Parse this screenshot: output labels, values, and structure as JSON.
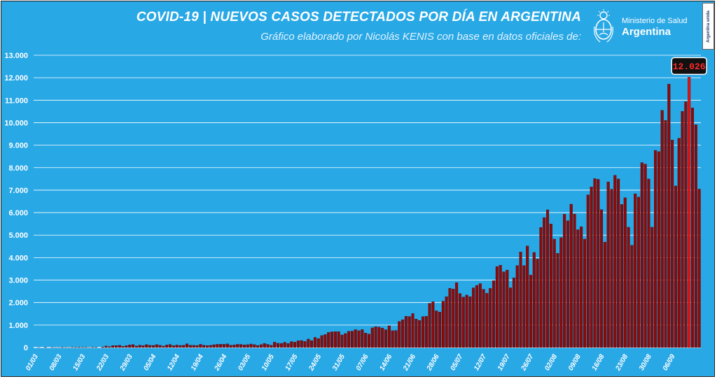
{
  "header": {
    "title": "COVID-19  |  NUEVOS CASOS DETECTADOS POR DÍA EN ARGENTINA",
    "subtitle": "Gráfico elaborado por Nicolás KENIS con base en datos oficiales de:"
  },
  "logo": {
    "line1": "Ministerio de Salud",
    "line2": "Argentina",
    "brand": "Argentina unida"
  },
  "colors": {
    "background": "#29a8e6",
    "bar": "#8b0a0a",
    "bar_peak": "#e01414",
    "grid": "#ffffff"
  },
  "chart_data": {
    "type": "bar",
    "title": "COVID-19  |  NUEVOS CASOS DETECTADOS POR DÍA EN ARGENTINA",
    "xlabel": "",
    "ylabel": "",
    "ylim": [
      0,
      13000
    ],
    "grid": true,
    "y_ticks": [
      "0",
      "1.000",
      "2.000",
      "3.000",
      "4.000",
      "5.000",
      "6.000",
      "7.000",
      "8.000",
      "9.000",
      "10.000",
      "11.000",
      "12.000",
      "13.000"
    ],
    "x_ticks": [
      "01/03",
      "08/03",
      "15/03",
      "22/03",
      "29/03",
      "05/04",
      "12/04",
      "19/04",
      "26/04",
      "03/05",
      "10/05",
      "17/05",
      "24/05",
      "31/05",
      "07/06",
      "14/06",
      "21/06",
      "28/06",
      "05/07",
      "12/07",
      "19/07",
      "26/07",
      "02/08",
      "09/08",
      "16/08",
      "23/08",
      "30/08",
      "06/09"
    ],
    "start_date": "01/03",
    "values": [
      0,
      1,
      0,
      6,
      0,
      4,
      1,
      1,
      6,
      4,
      1,
      5,
      6,
      14,
      11,
      12,
      2,
      12,
      5,
      0,
      24,
      67,
      41,
      86,
      87,
      101,
      55,
      85,
      115,
      134,
      66,
      106,
      88,
      132,
      98,
      94,
      129,
      102,
      64,
      114,
      138,
      85,
      112,
      94,
      101,
      167,
      103,
      100,
      92,
      143,
      104,
      87,
      100,
      126,
      142,
      146,
      144,
      162,
      105,
      115,
      142,
      140,
      117,
      129,
      157,
      133,
      93,
      131,
      183,
      141,
      103,
      239,
      190,
      184,
      234,
      183,
      265,
      243,
      303,
      312,
      276,
      377,
      308,
      452,
      401,
      533,
      578,
      673,
      700,
      709,
      706,
      561,
      624,
      720,
      732,
      796,
      750,
      799,
      644,
      602,
      875,
      929,
      908,
      868,
      792,
      970,
      749,
      760,
      1163,
      1240,
      1393,
      1381,
      1513,
      1268,
      1208,
      1376,
      1391,
      1969,
      2038,
      1634,
      1581,
      2060,
      2260,
      2635,
      2606,
      2886,
      2401,
      2246,
      2335,
      2262,
      2657,
      2767,
      2845,
      2590,
      2413,
      2632,
      2979,
      3604,
      3663,
      3367,
      3449,
      2657,
      3099,
      3645,
      4250,
      3645,
      4518,
      3223,
      4231,
      3937,
      5344,
      5782,
      6127,
      5493,
      4824,
      4190,
      4890,
      5929,
      5641,
      6377,
      5939,
      5241,
      5376,
      4824,
      6792,
      7147,
      7513,
      7482,
      6134,
      4688,
      7369,
      7043,
      7663,
      7498,
      6365,
      6663,
      5352,
      4550,
      6840,
      6693,
      8225,
      8159,
      7498,
      5352,
      8771,
      8713,
      10550,
      10104,
      11717,
      9230,
      7187,
      9309,
      10504,
      10933,
      12026,
      10658,
      9908,
      7048
    ]
  }
}
